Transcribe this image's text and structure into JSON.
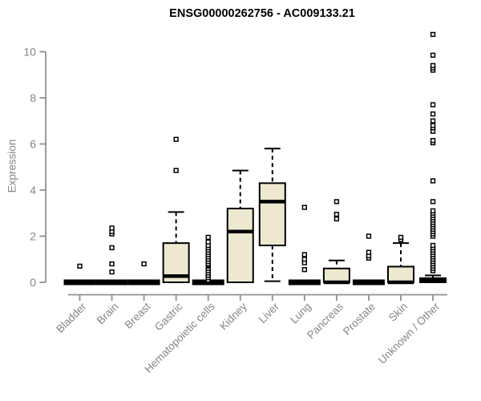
{
  "page": {
    "background": "#ffffff"
  },
  "chart_data": {
    "type": "boxplot",
    "title": "ENSG00000262756 - AC009133.21",
    "ylabel": "Expression",
    "xlabel": "",
    "ylim": [
      0,
      10.9
    ],
    "yticks": [
      0,
      2,
      4,
      6,
      8,
      10
    ],
    "grid": false,
    "legend": false,
    "colors": {
      "box_fill": "#EDE8D0",
      "box_border": "#000000",
      "median": "#000000",
      "whisker": "#000000",
      "outlier": "#000000",
      "axis_line": "#909090",
      "tick_label": "#868686",
      "title": "#000000"
    },
    "categories": [
      "Bladder",
      "Brain",
      "Breast",
      "Gastric",
      "Hematopoietic cells",
      "Kidney",
      "Liver",
      "Lung",
      "Pancreas",
      "Prostate",
      "Skin",
      "Unknown / Other"
    ],
    "boxes": [
      {
        "category": "Bladder",
        "q1": 0,
        "median": 0,
        "q3": 0,
        "whisker_low": 0,
        "whisker_high": 0,
        "outliers": [
          0.7
        ]
      },
      {
        "category": "Brain",
        "q1": 0,
        "median": 0,
        "q3": 0,
        "whisker_low": 0,
        "whisker_high": 0,
        "outliers": [
          0.45,
          0.8,
          1.5,
          2.1,
          2.2,
          2.35
        ]
      },
      {
        "category": "Breast",
        "q1": 0,
        "median": 0,
        "q3": 0,
        "whisker_low": 0,
        "whisker_high": 0,
        "outliers": [
          0.8
        ]
      },
      {
        "category": "Gastric",
        "q1": 0,
        "median": 0.27,
        "q3": 1.7,
        "whisker_low": 0,
        "whisker_high": 3.05,
        "outliers": [
          4.85,
          6.2
        ]
      },
      {
        "category": "Hematopoietic cells",
        "q1": 0,
        "median": 0,
        "q3": 0,
        "whisker_low": 0,
        "whisker_high": 0,
        "outliers": [
          0.1,
          0.2,
          0.3,
          0.4,
          0.5,
          0.6,
          0.7,
          0.75,
          0.8,
          0.9,
          1.0,
          1.1,
          1.2,
          1.3,
          1.4,
          1.5,
          1.6,
          1.75,
          1.95
        ]
      },
      {
        "category": "Kidney",
        "q1": 0,
        "median": 2.2,
        "q3": 3.2,
        "whisker_low": 0,
        "whisker_high": 4.85,
        "outliers": []
      },
      {
        "category": "Liver",
        "q1": 1.6,
        "median": 3.5,
        "q3": 4.3,
        "whisker_low": 0.05,
        "whisker_high": 5.8,
        "outliers": []
      },
      {
        "category": "Lung",
        "q1": 0,
        "median": 0,
        "q3": 0,
        "whisker_low": 0,
        "whisker_high": 0,
        "outliers": [
          0.55,
          0.85,
          1.0,
          1.2,
          3.25
        ]
      },
      {
        "category": "Pancreas",
        "q1": 0,
        "median": 0,
        "q3": 0.6,
        "whisker_low": 0,
        "whisker_high": 0.95,
        "outliers": [
          2.75,
          2.95,
          3.5
        ]
      },
      {
        "category": "Prostate",
        "q1": 0,
        "median": 0,
        "q3": 0,
        "whisker_low": 0,
        "whisker_high": 0,
        "outliers": [
          1.05,
          1.15,
          1.3,
          2.0
        ]
      },
      {
        "category": "Skin",
        "q1": 0,
        "median": 0,
        "q3": 0.68,
        "whisker_low": 0,
        "whisker_high": 1.7,
        "outliers": [
          1.85,
          1.95
        ]
      },
      {
        "category": "Unknown / Other",
        "q1": 0,
        "median": 0.08,
        "q3": 0.18,
        "whisker_low": 0,
        "whisker_high": 0.3,
        "outliers": [
          0.5,
          0.6,
          0.7,
          0.8,
          0.9,
          1.0,
          1.1,
          1.2,
          1.3,
          1.4,
          1.5,
          1.6,
          2.0,
          2.1,
          2.2,
          2.3,
          2.4,
          2.5,
          2.6,
          2.7,
          2.8,
          2.9,
          3.0,
          3.1,
          3.5,
          4.4,
          6.05,
          6.15,
          6.55,
          6.7,
          6.8,
          7.0,
          7.3,
          7.7,
          9.2,
          9.3,
          9.4,
          9.85,
          10.75
        ]
      }
    ]
  }
}
